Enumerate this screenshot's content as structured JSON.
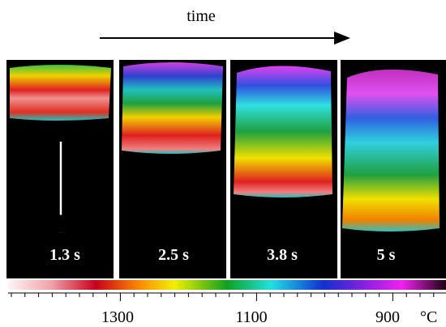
{
  "header": {
    "label": "time"
  },
  "panels": [
    {
      "label": "1.3 s"
    },
    {
      "label": "2.5 s"
    },
    {
      "label": "3.8 s"
    },
    {
      "label": "5 s"
    }
  ],
  "colorbar": {
    "ticks": [
      "1300",
      "1100",
      "900"
    ],
    "unit": "°C"
  }
}
